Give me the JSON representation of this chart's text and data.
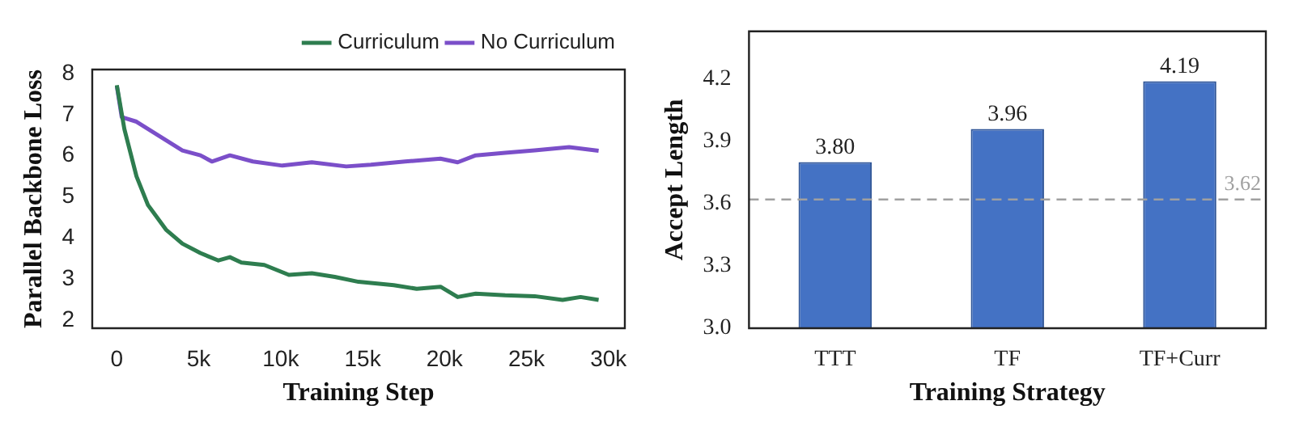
{
  "chart_data": [
    {
      "type": "line",
      "xlabel": "Training Step",
      "ylabel": "Parallel Backbone Loss",
      "xlim": [
        -1500,
        31000
      ],
      "ylim": [
        1.8,
        8.1
      ],
      "xticks": [
        {
          "value": 0,
          "label": "0"
        },
        {
          "value": 5000,
          "label": "5k"
        },
        {
          "value": 10000,
          "label": "10k"
        },
        {
          "value": 15000,
          "label": "15k"
        },
        {
          "value": 20000,
          "label": "20k"
        },
        {
          "value": 25000,
          "label": "25k"
        },
        {
          "value": 30000,
          "label": "30k"
        }
      ],
      "yticks": [
        2,
        3,
        4,
        5,
        6,
        7,
        8
      ],
      "grid": false,
      "legend": "top right",
      "marker": "none",
      "line_style": "solid",
      "series": [
        {
          "name": "Curriculum",
          "color": "#2e7d4f",
          "x": [
            0,
            460,
            1200,
            1900,
            3000,
            4000,
            5100,
            6200,
            6900,
            7600,
            9000,
            10500,
            11900,
            13300,
            14750,
            16900,
            18300,
            19750,
            20800,
            21900,
            23700,
            25500,
            27200,
            28300,
            29400
          ],
          "values": [
            7.72,
            6.65,
            5.5,
            4.8,
            4.2,
            3.86,
            3.63,
            3.45,
            3.53,
            3.4,
            3.34,
            3.1,
            3.14,
            3.05,
            2.93,
            2.85,
            2.76,
            2.81,
            2.56,
            2.64,
            2.6,
            2.58,
            2.49,
            2.56,
            2.49
          ]
        },
        {
          "name": "No Curriculum",
          "color": "#7b4fc9",
          "x": [
            0,
            300,
            1200,
            2600,
            4000,
            5100,
            5800,
            6900,
            8300,
            10100,
            11900,
            14000,
            15500,
            17600,
            19750,
            20800,
            21900,
            23700,
            25500,
            27600,
            29400
          ],
          "values": [
            7.7,
            6.94,
            6.83,
            6.48,
            6.13,
            6.01,
            5.86,
            6.01,
            5.86,
            5.76,
            5.84,
            5.74,
            5.78,
            5.86,
            5.93,
            5.84,
            6.01,
            6.07,
            6.13,
            6.21,
            6.12
          ]
        }
      ]
    },
    {
      "type": "bar",
      "xlabel": "Training Strategy",
      "ylabel": "Accept Length",
      "categories": [
        "TTT",
        "TF",
        "TF+Curr"
      ],
      "values": [
        3.8,
        3.96,
        4.19
      ],
      "value_labels": [
        "3.80",
        "3.96",
        "4.19"
      ],
      "color": "#4472c4",
      "ylim": [
        3.0,
        4.43
      ],
      "yticks": [
        {
          "value": 3.0,
          "label": "3.0"
        },
        {
          "value": 3.3,
          "label": "3.3"
        },
        {
          "value": 3.6,
          "label": "3.6"
        },
        {
          "value": 3.9,
          "label": "3.9"
        },
        {
          "value": 4.2,
          "label": "4.2"
        }
      ],
      "grid": false,
      "legend": false,
      "ref_lines": [
        {
          "axis": "y",
          "value": 3.62,
          "label": "3.62",
          "color": "#a0a0a0",
          "line_style": "dashed"
        }
      ]
    }
  ]
}
